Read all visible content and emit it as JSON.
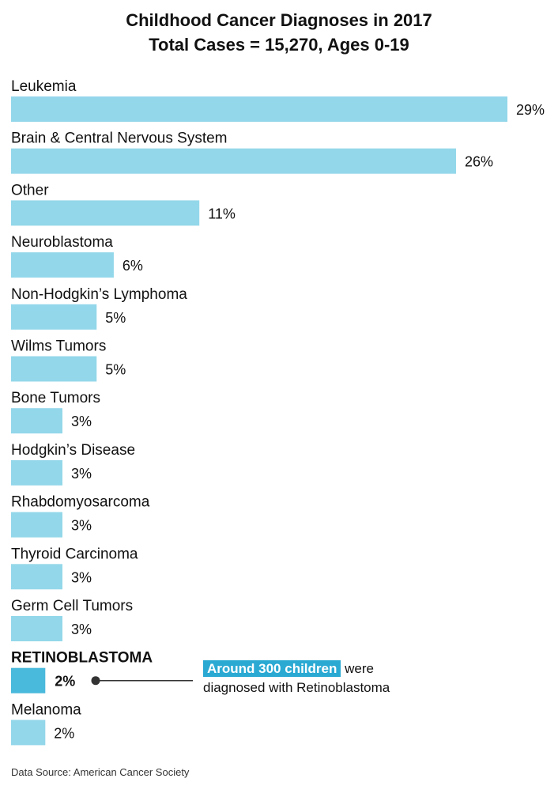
{
  "title_line1": "Childhood Cancer Diagnoses in 2017",
  "title_line2": "Total Cases = 15,270, Ages 0-19",
  "source": "Data Source: American Cancer Society",
  "callout": {
    "highlight": "Around 300 children",
    "text_after": "were",
    "text_line2": "diagnosed with Retinoblastoma"
  },
  "colors": {
    "bar": "#93d7ea",
    "highlight_bar": "#49b9dc",
    "badge": "#2aa9d3",
    "connector": "#333333"
  },
  "chart_data": {
    "type": "bar",
    "orientation": "horizontal",
    "title": "Childhood Cancer Diagnoses in 2017",
    "subtitle": "Total Cases = 15,270, Ages 0-19",
    "categories": [
      "Leukemia",
      "Brain & Central Nervous System",
      "Other",
      "Neuroblastoma",
      "Non-Hodgkin’s Lymphoma",
      "Wilms Tumors",
      "Bone Tumors",
      "Hodgkin’s Disease",
      "Rhabdomyosarcoma",
      "Thyroid Carcinoma",
      "Germ Cell Tumors",
      "RETINOBLASTOMA",
      "Melanoma"
    ],
    "values": [
      29,
      26,
      11,
      6,
      5,
      5,
      3,
      3,
      3,
      3,
      3,
      2,
      2
    ],
    "value_labels": [
      "29%",
      "26%",
      "11%",
      "6%",
      "5%",
      "5%",
      "3%",
      "3%",
      "3%",
      "3%",
      "3%",
      "2%",
      "2%"
    ],
    "highlight_index": 11,
    "unit": "%",
    "xlim": [
      0,
      29
    ],
    "grid": false,
    "legend": "none"
  }
}
